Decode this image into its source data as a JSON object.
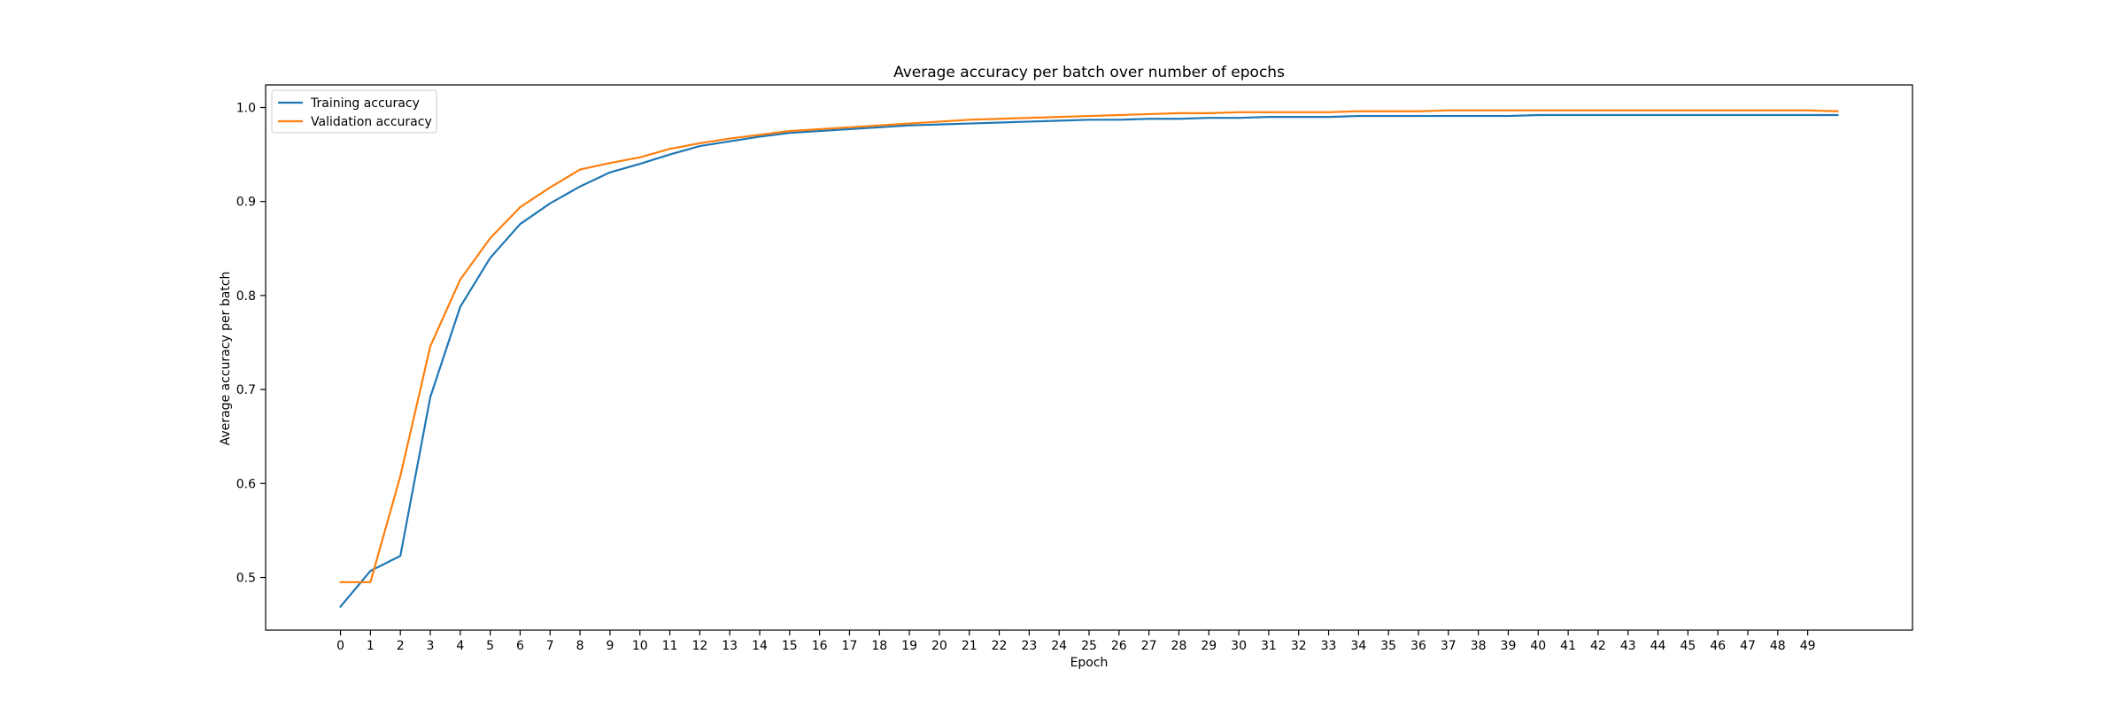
{
  "chart_data": {
    "type": "line",
    "title": "Average accuracy per batch over number of epochs",
    "xlabel": "Epoch",
    "ylabel": "Average accuracy per batch",
    "x": [
      0,
      1,
      2,
      3,
      4,
      5,
      6,
      7,
      8,
      9,
      10,
      11,
      12,
      13,
      14,
      15,
      16,
      17,
      18,
      19,
      20,
      21,
      22,
      23,
      24,
      25,
      26,
      27,
      28,
      29,
      30,
      31,
      32,
      33,
      34,
      35,
      36,
      37,
      38,
      39,
      40,
      41,
      42,
      43,
      44,
      45,
      46,
      47,
      48,
      49,
      50
    ],
    "xticks": [
      0,
      1,
      2,
      3,
      4,
      5,
      6,
      7,
      8,
      9,
      10,
      11,
      12,
      13,
      14,
      15,
      16,
      17,
      18,
      19,
      20,
      21,
      22,
      23,
      24,
      25,
      26,
      27,
      28,
      29,
      30,
      31,
      32,
      33,
      34,
      35,
      36,
      37,
      38,
      39,
      40,
      41,
      42,
      43,
      44,
      45,
      46,
      47,
      48,
      49
    ],
    "xlim": [
      -2.5,
      52.5
    ],
    "ylim": [
      0.444,
      1.024
    ],
    "yticks": [
      "0.5",
      "0.6",
      "0.7",
      "0.8",
      "0.9",
      "1.0"
    ],
    "grid": false,
    "legend_position": "top-left",
    "series": [
      {
        "name": "Training accuracy",
        "color": "#1f77b4",
        "values": [
          0.469,
          0.507,
          0.523,
          0.692,
          0.788,
          0.84,
          0.876,
          0.898,
          0.916,
          0.931,
          0.94,
          0.95,
          0.959,
          0.964,
          0.969,
          0.973,
          0.975,
          0.977,
          0.979,
          0.981,
          0.982,
          0.983,
          0.984,
          0.985,
          0.986,
          0.987,
          0.987,
          0.988,
          0.988,
          0.989,
          0.989,
          0.99,
          0.99,
          0.99,
          0.991,
          0.991,
          0.991,
          0.991,
          0.991,
          0.991,
          0.992,
          0.992,
          0.992,
          0.992,
          0.992,
          0.992,
          0.992,
          0.992,
          0.992,
          0.992,
          0.992
        ]
      },
      {
        "name": "Validation accuracy",
        "color": "#ff7f0e",
        "values": [
          0.495,
          0.495,
          0.608,
          0.746,
          0.817,
          0.861,
          0.894,
          0.915,
          0.934,
          0.941,
          0.947,
          0.956,
          0.962,
          0.967,
          0.971,
          0.975,
          0.977,
          0.979,
          0.981,
          0.983,
          0.985,
          0.987,
          0.988,
          0.989,
          0.99,
          0.991,
          0.992,
          0.993,
          0.994,
          0.994,
          0.995,
          0.995,
          0.995,
          0.995,
          0.996,
          0.996,
          0.996,
          0.997,
          0.997,
          0.997,
          0.997,
          0.997,
          0.997,
          0.997,
          0.997,
          0.997,
          0.997,
          0.997,
          0.997,
          0.997,
          0.996
        ]
      }
    ]
  }
}
